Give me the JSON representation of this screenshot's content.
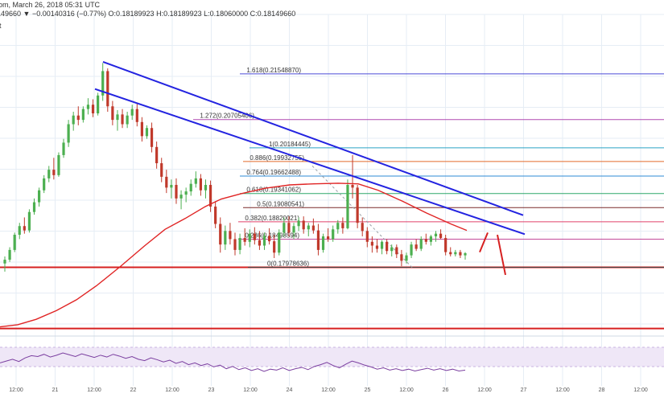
{
  "header": {
    "left_fragment": "om, March 26, 2018 05:31 UTC",
    "ohlc_text": "149660 ▼ −0.00140316 (−0.77%) O:0.18189923 H:0.18189923 L:0.18060000 C:0.18149660",
    "sub_fragment": "t"
  },
  "colors": {
    "background": "#ffffff",
    "grid": "#e6edf5",
    "candle_up": "#4caf50",
    "candle_down": "#c0392b",
    "trendline": "#2323e0",
    "ma": "#e02424",
    "support": "#d62020",
    "rsi_line": "#7b3fa0",
    "rsi_band": "#efe7f7"
  },
  "chart_data": [
    {
      "type": "candlestick",
      "title": "",
      "xlabel": "",
      "ylabel": "",
      "x_ticks": [
        "12:00",
        "21",
        "12:00",
        "22",
        "12:00",
        "23",
        "12:00",
        "24",
        "12:00",
        "25",
        "12:00",
        "26",
        "12:00",
        "27",
        "12:00",
        "28",
        "12:00"
      ],
      "ylim": [
        0.168,
        0.222
      ],
      "fibonacci_levels": [
        {
          "label": "1.618(0.21548870)",
          "value": 0.2154887,
          "color": "#4a4ad8"
        },
        {
          "label": "1.272(0.20705406)",
          "value": 0.20705406,
          "color": "#b04ab0"
        },
        {
          "label": "1(0.20184445)",
          "value": 0.20184445,
          "color": "#2aa3c4"
        },
        {
          "label": "0.886(0.19932755)",
          "value": 0.19932755,
          "color": "#e36a2b"
        },
        {
          "label": "0.764(0.19662488)",
          "value": 0.19662488,
          "color": "#2e8bd6"
        },
        {
          "label": "0.618(0.19341062)",
          "value": 0.19341062,
          "color": "#2fa86a"
        },
        {
          "label": "0.5(0.19080541)",
          "value": 0.19080541,
          "color": "#7a2a2a"
        },
        {
          "label": "0.382(0.18820021)",
          "value": 0.18820021,
          "color": "#e0416a"
        },
        {
          "label": "0.236(0.18498594)",
          "value": 0.18498594,
          "color": "#c44a9a"
        },
        {
          "label": "0(0.17978636)",
          "value": 0.17978636,
          "color": "#444444"
        }
      ],
      "support_lines": [
        0.1798,
        0.1685
      ],
      "candles": [
        [
          0.1805,
          0.1818,
          0.179,
          0.1812
        ],
        [
          0.1812,
          0.1835,
          0.1808,
          0.183
        ],
        [
          0.183,
          0.1862,
          0.1826,
          0.1858
        ],
        [
          0.1858,
          0.188,
          0.185,
          0.1874
        ],
        [
          0.1874,
          0.189,
          0.186,
          0.1866
        ],
        [
          0.1866,
          0.1905,
          0.1862,
          0.19
        ],
        [
          0.19,
          0.1925,
          0.1895,
          0.1918
        ],
        [
          0.1918,
          0.1945,
          0.191,
          0.194
        ],
        [
          0.194,
          0.1968,
          0.1935,
          0.1962
        ],
        [
          0.1962,
          0.1985,
          0.1955,
          0.1978
        ],
        [
          0.1978,
          0.2,
          0.196,
          0.1968
        ],
        [
          0.1968,
          0.201,
          0.1965,
          0.2005
        ],
        [
          0.2005,
          0.2035,
          0.2,
          0.2028
        ],
        [
          0.2028,
          0.207,
          0.202,
          0.2062
        ],
        [
          0.2062,
          0.2085,
          0.205,
          0.2078
        ],
        [
          0.2078,
          0.2095,
          0.206,
          0.207
        ],
        [
          0.207,
          0.2095,
          0.2065,
          0.209
        ],
        [
          0.209,
          0.211,
          0.208,
          0.2098
        ],
        [
          0.2098,
          0.2108,
          0.2075,
          0.2082
        ],
        [
          0.2082,
          0.212,
          0.2078,
          0.2115
        ],
        [
          0.2115,
          0.2175,
          0.2105,
          0.216
        ],
        [
          0.216,
          0.2165,
          0.2085,
          0.2095
        ],
        [
          0.2095,
          0.2105,
          0.206,
          0.207
        ],
        [
          0.207,
          0.2088,
          0.205,
          0.208
        ],
        [
          0.208,
          0.209,
          0.2055,
          0.2062
        ],
        [
          0.2062,
          0.2085,
          0.2055,
          0.2078
        ],
        [
          0.2078,
          0.2098,
          0.207,
          0.209
        ],
        [
          0.209,
          0.21,
          0.2058,
          0.2066
        ],
        [
          0.2066,
          0.2075,
          0.203,
          0.204
        ],
        [
          0.204,
          0.206,
          0.2035,
          0.2055
        ],
        [
          0.2055,
          0.2065,
          0.201,
          0.202
        ],
        [
          0.202,
          0.203,
          0.198,
          0.199
        ],
        [
          0.199,
          0.2,
          0.1955,
          0.1965
        ],
        [
          0.1965,
          0.1978,
          0.1935,
          0.1945
        ],
        [
          0.1945,
          0.196,
          0.1925,
          0.195
        ],
        [
          0.195,
          0.1962,
          0.1915,
          0.1925
        ],
        [
          0.1925,
          0.194,
          0.1905,
          0.1932
        ],
        [
          0.1932,
          0.1945,
          0.1918,
          0.1938
        ],
        [
          0.1938,
          0.196,
          0.193,
          0.1952
        ],
        [
          0.1952,
          0.1975,
          0.1945,
          0.1962
        ],
        [
          0.1962,
          0.197,
          0.193,
          0.194
        ],
        [
          0.194,
          0.196,
          0.1925,
          0.195
        ],
        [
          0.195,
          0.1958,
          0.19,
          0.191
        ],
        [
          0.191,
          0.192,
          0.187,
          0.1878
        ],
        [
          0.1878,
          0.189,
          0.1825,
          0.184
        ],
        [
          0.184,
          0.1875,
          0.183,
          0.1865
        ],
        [
          0.1865,
          0.188,
          0.184,
          0.185
        ],
        [
          0.185,
          0.1862,
          0.182,
          0.183
        ],
        [
          0.183,
          0.186,
          0.1822,
          0.1852
        ],
        [
          0.1852,
          0.187,
          0.1838,
          0.1845
        ],
        [
          0.1845,
          0.1868,
          0.1835,
          0.186
        ],
        [
          0.186,
          0.1872,
          0.184,
          0.1848
        ],
        [
          0.1848,
          0.1865,
          0.183,
          0.1838
        ],
        [
          0.1838,
          0.1862,
          0.183,
          0.1856
        ],
        [
          0.1856,
          0.187,
          0.184,
          0.1846
        ],
        [
          0.1846,
          0.1858,
          0.1815,
          0.1825
        ],
        [
          0.1825,
          0.1868,
          0.182,
          0.1862
        ],
        [
          0.1862,
          0.189,
          0.1855,
          0.188
        ],
        [
          0.188,
          0.1892,
          0.1855,
          0.1862
        ],
        [
          0.1862,
          0.188,
          0.185,
          0.1874
        ],
        [
          0.1874,
          0.189,
          0.1865,
          0.1884
        ],
        [
          0.1884,
          0.1892,
          0.186,
          0.1868
        ],
        [
          0.1868,
          0.188,
          0.1855,
          0.1875
        ],
        [
          0.1875,
          0.1888,
          0.186,
          0.1866
        ],
        [
          0.1866,
          0.1878,
          0.182,
          0.183
        ],
        [
          0.183,
          0.186,
          0.1825,
          0.1855
        ],
        [
          0.1855,
          0.187,
          0.1845,
          0.185
        ],
        [
          0.185,
          0.1875,
          0.1845,
          0.1868
        ],
        [
          0.1868,
          0.1885,
          0.186,
          0.188
        ],
        [
          0.188,
          0.189,
          0.186,
          0.187
        ],
        [
          0.187,
          0.196,
          0.1868,
          0.195
        ],
        [
          0.195,
          0.2005,
          0.1925,
          0.1945
        ],
        [
          0.1945,
          0.195,
          0.187,
          0.188
        ],
        [
          0.188,
          0.189,
          0.1855,
          0.1865
        ],
        [
          0.1865,
          0.1872,
          0.1835,
          0.1845
        ],
        [
          0.1845,
          0.1855,
          0.1825,
          0.1838
        ],
        [
          0.1838,
          0.185,
          0.1825,
          0.1832
        ],
        [
          0.1832,
          0.1848,
          0.1822,
          0.1845
        ],
        [
          0.1845,
          0.185,
          0.1822,
          0.1828
        ],
        [
          0.1828,
          0.184,
          0.1818,
          0.1835
        ],
        [
          0.1835,
          0.184,
          0.1815,
          0.1822
        ],
        [
          0.1822,
          0.183,
          0.18,
          0.181
        ],
        [
          0.181,
          0.1825,
          0.1805,
          0.182
        ],
        [
          0.182,
          0.1845,
          0.1815,
          0.184
        ],
        [
          0.184,
          0.185,
          0.1828,
          0.1832
        ],
        [
          0.1832,
          0.1855,
          0.1828,
          0.185
        ],
        [
          0.185,
          0.186,
          0.184,
          0.1845
        ],
        [
          0.1845,
          0.1858,
          0.1838,
          0.1855
        ],
        [
          0.1855,
          0.1865,
          0.1845,
          0.186
        ],
        [
          0.186,
          0.1868,
          0.185,
          0.1852
        ],
        [
          0.1852,
          0.1858,
          0.182,
          0.1826
        ],
        [
          0.1826,
          0.1835,
          0.1818,
          0.1822
        ],
        [
          0.1822,
          0.183,
          0.1818,
          0.1826
        ],
        [
          0.1826,
          0.183,
          0.1815,
          0.182
        ],
        [
          0.182,
          0.1826,
          0.1812,
          0.1824
        ]
      ],
      "moving_average": [
        [
          0,
          0.1688
        ],
        [
          22,
          0.1692
        ],
        [
          45,
          0.1702
        ],
        [
          70,
          0.1718
        ],
        [
          95,
          0.1738
        ],
        [
          120,
          0.1764
        ],
        [
          150,
          0.18
        ],
        [
          180,
          0.1838
        ],
        [
          205,
          0.1868
        ],
        [
          230,
          0.1888
        ],
        [
          255,
          0.191
        ],
        [
          275,
          0.1924
        ],
        [
          300,
          0.1934
        ],
        [
          330,
          0.1944
        ],
        [
          360,
          0.195
        ],
        [
          390,
          0.1952
        ],
        [
          420,
          0.1953
        ],
        [
          445,
          0.1952
        ],
        [
          470,
          0.194
        ],
        [
          500,
          0.192
        ],
        [
          530,
          0.1898
        ],
        [
          560,
          0.1878
        ],
        [
          580,
          0.1866
        ]
      ],
      "trendlines": [
        [
          [
            128,
            0.2177
          ],
          [
            650,
            0.1894
          ]
        ],
        [
          [
            118,
            0.2127
          ],
          [
            652,
            0.1859
          ]
        ]
      ],
      "projection_arrows": [
        [
          [
            596,
            0.1826
          ],
          [
            606,
            0.1862
          ]
        ],
        [
          [
            618,
            0.1858
          ],
          [
            628,
            0.1784
          ]
        ]
      ],
      "rsi": [
        44,
        48,
        52,
        47,
        55,
        60,
        58,
        63,
        57,
        61,
        66,
        62,
        58,
        64,
        60,
        56,
        61,
        57,
        63,
        59,
        54,
        58,
        52,
        49,
        55,
        51,
        46,
        50,
        43,
        47,
        40,
        44,
        38,
        42,
        35,
        39,
        31,
        36,
        29,
        33,
        27,
        31,
        25,
        30,
        28,
        33,
        27,
        31,
        34,
        29,
        36,
        40,
        45,
        38,
        33,
        41,
        48,
        44,
        39,
        35,
        30,
        33,
        28,
        31,
        27,
        30,
        26,
        29,
        32,
        28,
        31,
        27,
        30,
        26,
        28
      ]
    }
  ]
}
